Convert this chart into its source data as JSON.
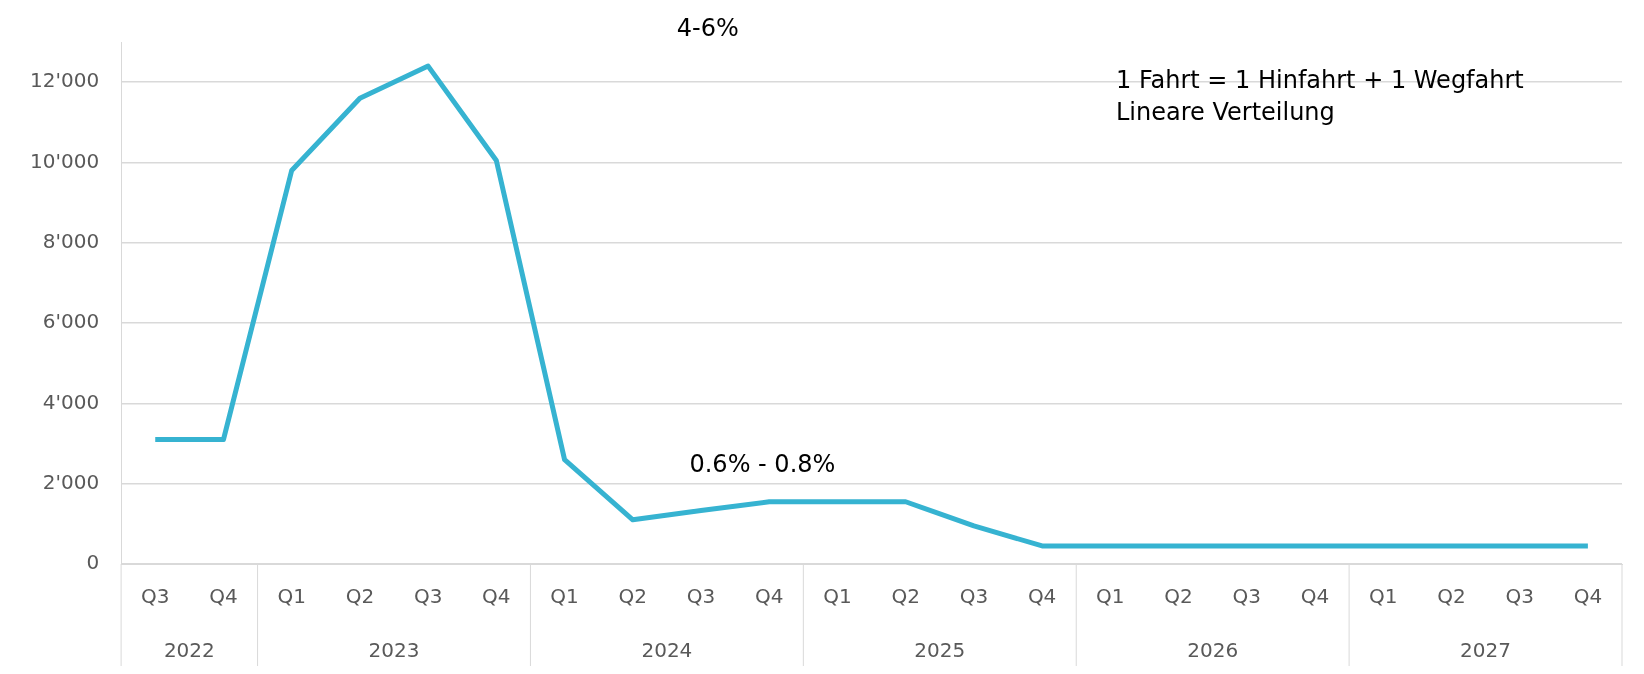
{
  "chart_data": {
    "type": "line",
    "categories": [
      "Q3",
      "Q4",
      "Q1",
      "Q2",
      "Q3",
      "Q4",
      "Q1",
      "Q2",
      "Q3",
      "Q4",
      "Q1",
      "Q2",
      "Q3",
      "Q4",
      "Q1",
      "Q2",
      "Q3",
      "Q4",
      "Q1",
      "Q2",
      "Q3",
      "Q4"
    ],
    "series": [
      {
        "color": "#36b3d1",
        "values": [
          3100,
          3100,
          9800,
          11600,
          12400,
          10050,
          2600,
          1100,
          1330,
          1550,
          1550,
          1550,
          950,
          450,
          450,
          450,
          450,
          450,
          450,
          450,
          450,
          450
        ]
      }
    ],
    "ylim": [
      0,
      13000
    ],
    "yticks": [
      {
        "value": 0,
        "label": "0"
      },
      {
        "value": 2000,
        "label": "2'000"
      },
      {
        "value": 4000,
        "label": "4'000"
      },
      {
        "value": 6000,
        "label": "6'000"
      },
      {
        "value": 8000,
        "label": "8'000"
      },
      {
        "value": 10000,
        "label": "10'000"
      },
      {
        "value": 12000,
        "label": "12'000"
      }
    ],
    "grid": "y",
    "legend": false,
    "marker": "none",
    "line_style": "solid",
    "annotations": [
      "2022",
      "2023",
      "2024",
      "2025",
      "2026",
      "2027",
      "4-6%",
      "0.6% - 0.8%",
      "1 Fahrt = 1 Hinfahrt + 1 Wegfahrt",
      "Lineare Verteilung"
    ]
  }
}
